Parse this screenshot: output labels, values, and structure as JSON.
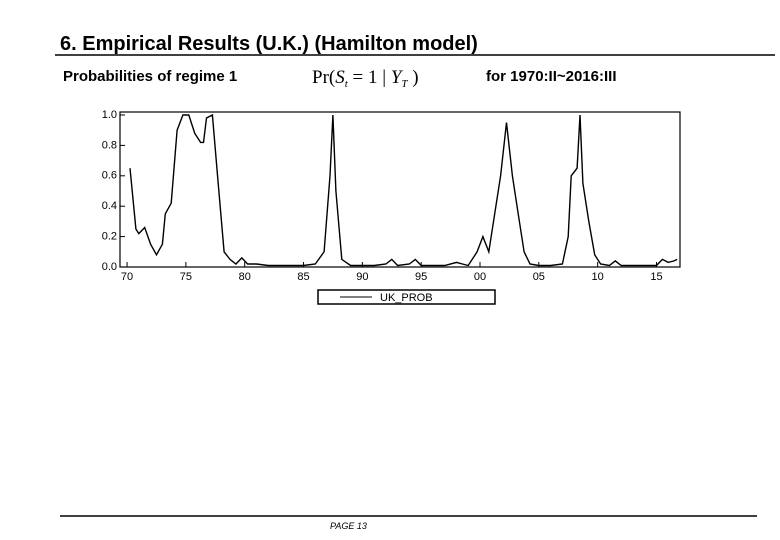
{
  "title": "6. Empirical Results (U.K.) (Hamilton model)",
  "subtitle": "Probabilities of regime 1",
  "formula": [
    "Pr(",
    "S",
    "t",
    " = 1 | ",
    "Y",
    "T",
    " )"
  ],
  "period": "for 1970:II~2016:III",
  "footer": "PAGE 13",
  "chart_data": {
    "type": "line",
    "x": [
      1970.25,
      1970.75,
      1971,
      1971.5,
      1972,
      1972.5,
      1973,
      1973.25,
      1973.75,
      1974.25,
      1974.75,
      1975.25,
      1975.75,
      1976.25,
      1976.5,
      1976.75,
      1977.25,
      1977.75,
      1978.25,
      1978.75,
      1979.25,
      1979.75,
      1980.25,
      1981,
      1982,
      1983,
      1984,
      1985,
      1986,
      1986.75,
      1987.25,
      1987.5,
      1987.75,
      1988.25,
      1989,
      1990,
      1991,
      1992,
      1992.5,
      1993,
      1994,
      1994.5,
      1995,
      1996,
      1997,
      1998,
      1998.5,
      1999,
      1999.75,
      2000.25,
      2000.75,
      2001.25,
      2001.75,
      2002.25,
      2002.75,
      2003.25,
      2003.75,
      2004.25,
      2005,
      2006,
      2007,
      2007.5,
      2007.75,
      2008.25,
      2008.5,
      2008.75,
      2009.25,
      2009.75,
      2010.25,
      2011,
      2011.5,
      2012,
      2013,
      2014,
      2015,
      2015.5,
      2016,
      2016.5,
      2016.75
    ],
    "series": [
      {
        "name": "UK_PROB",
        "color": "#000000",
        "values": [
          0.65,
          0.25,
          0.22,
          0.26,
          0.15,
          0.08,
          0.15,
          0.35,
          0.42,
          0.9,
          1.0,
          1.0,
          0.88,
          0.82,
          0.82,
          0.98,
          1.0,
          0.55,
          0.1,
          0.05,
          0.02,
          0.06,
          0.02,
          0.02,
          0.01,
          0.01,
          0.01,
          0.01,
          0.02,
          0.1,
          0.6,
          1.0,
          0.5,
          0.05,
          0.01,
          0.01,
          0.01,
          0.02,
          0.05,
          0.01,
          0.02,
          0.05,
          0.01,
          0.01,
          0.01,
          0.03,
          0.02,
          0.01,
          0.1,
          0.2,
          0.1,
          0.35,
          0.6,
          0.95,
          0.6,
          0.35,
          0.1,
          0.02,
          0.01,
          0.01,
          0.02,
          0.2,
          0.6,
          0.65,
          1.0,
          0.55,
          0.3,
          0.08,
          0.02,
          0.01,
          0.04,
          0.01,
          0.01,
          0.01,
          0.01,
          0.05,
          0.03,
          0.04,
          0.05
        ]
      }
    ],
    "xlim": [
      1969.4,
      2017.0
    ],
    "ylim": [
      0,
      1
    ],
    "xticks": [
      {
        "value": 1970,
        "label": "70"
      },
      {
        "value": 1975,
        "label": "75"
      },
      {
        "value": 1980,
        "label": "80"
      },
      {
        "value": 1985,
        "label": "85"
      },
      {
        "value": 1990,
        "label": "90"
      },
      {
        "value": 1995,
        "label": "95"
      },
      {
        "value": 2000,
        "label": "00"
      },
      {
        "value": 2005,
        "label": "05"
      },
      {
        "value": 2010,
        "label": "10"
      },
      {
        "value": 2015,
        "label": "15"
      }
    ],
    "yticks": [
      {
        "value": 0,
        "label": "0.0"
      },
      {
        "value": 0.2,
        "label": "0.2"
      },
      {
        "value": 0.4,
        "label": "0.4"
      },
      {
        "value": 0.6,
        "label": "0.6"
      },
      {
        "value": 0.8,
        "label": "0.8"
      },
      {
        "value": 1,
        "label": "1.0"
      }
    ],
    "legend": "bottom"
  }
}
